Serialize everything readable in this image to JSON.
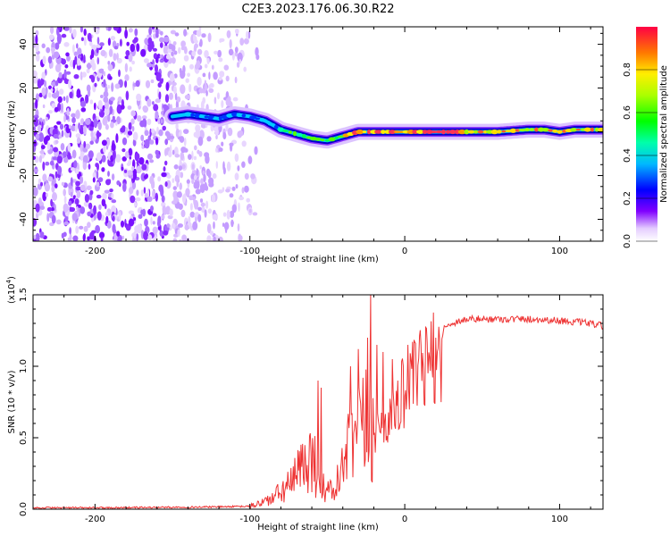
{
  "title": "C2E3.2023.176.06.30.R22",
  "chart_data": [
    {
      "type": "heatmap",
      "name": "spectrogram",
      "xlabel": "Height of straight line (km)",
      "ylabel": "Frequency (Hz)",
      "xlim": [
        -240,
        128
      ],
      "ylim": [
        -50,
        48
      ],
      "xticks": [
        -200,
        -100,
        0,
        100
      ],
      "yticks": [
        -40,
        -20,
        0,
        20,
        40
      ],
      "xtick_labels": [
        "-200",
        "-100",
        "0",
        "100"
      ],
      "ytick_labels": [
        "-40",
        "-20",
        "0",
        "20",
        "40"
      ],
      "noise_region_x": [
        -240,
        -95
      ],
      "signal_track": {
        "x": [
          -150,
          -140,
          -130,
          -120,
          -110,
          -100,
          -90,
          -80,
          -70,
          -60,
          -50,
          -40,
          -30,
          -20,
          -10,
          0,
          20,
          40,
          60,
          80,
          90,
          100,
          110,
          128
        ],
        "freq": [
          7,
          8,
          7,
          6,
          8,
          7,
          5,
          1,
          -1,
          -3,
          -4,
          -2,
          0,
          0,
          0,
          0,
          0,
          0,
          0,
          1,
          1,
          0,
          1,
          1
        ]
      },
      "colorbar": {
        "label": "Normalized spectral amplitude",
        "range": [
          0.0,
          1.0
        ],
        "ticks": [
          0.0,
          0.2,
          0.4,
          0.6,
          0.8
        ],
        "tick_labels": [
          "0.0",
          "0.2",
          "0.4",
          "0.6",
          "0.8"
        ]
      }
    },
    {
      "type": "line",
      "name": "snr",
      "xlabel": "Height of straight line (km)",
      "ylabel": "SNR (10 * v/v)",
      "multiplier_label": "(x10",
      "multiplier_exp": "4",
      "multiplier_close": ")",
      "color": "#ee3333",
      "xlim": [
        -240,
        128
      ],
      "ylim": [
        0,
        1.5
      ],
      "xticks": [
        -200,
        -100,
        0,
        100
      ],
      "yticks": [
        0.0,
        0.5,
        1.0,
        1.5
      ],
      "xtick_labels": [
        "-200",
        "-100",
        "0",
        "100"
      ],
      "ytick_labels": [
        "0.0",
        "0.5",
        "1.0",
        "1.5"
      ],
      "envelope": {
        "x": [
          -240,
          -200,
          -130,
          -100,
          -85,
          -72,
          -65,
          -60,
          -55,
          -50,
          -45,
          -40,
          -35,
          -30,
          -25,
          -20,
          -15,
          -10,
          -5,
          0,
          10,
          20,
          30,
          40,
          60,
          80,
          100,
          110,
          120,
          128
        ],
        "y": [
          0.01,
          0.01,
          0.015,
          0.02,
          0.08,
          0.2,
          0.35,
          0.4,
          0.2,
          0.12,
          0.15,
          0.3,
          0.45,
          0.55,
          0.6,
          0.62,
          0.65,
          0.75,
          0.85,
          0.95,
          1.1,
          1.22,
          1.3,
          1.33,
          1.33,
          1.33,
          1.32,
          1.31,
          1.3,
          1.28
        ]
      },
      "spikes": [
        {
          "x": -56,
          "y": 0.9
        },
        {
          "x": -54,
          "y": 0.85
        },
        {
          "x": -35,
          "y": 1.0
        },
        {
          "x": -30,
          "y": 1.12
        },
        {
          "x": -24,
          "y": 1.2
        },
        {
          "x": -22,
          "y": 1.5
        },
        {
          "x": -18,
          "y": 1.15
        },
        {
          "x": -14,
          "y": 1.1
        },
        {
          "x": -8,
          "y": 1.05
        },
        {
          "x": 2,
          "y": 1.15
        }
      ]
    }
  ]
}
